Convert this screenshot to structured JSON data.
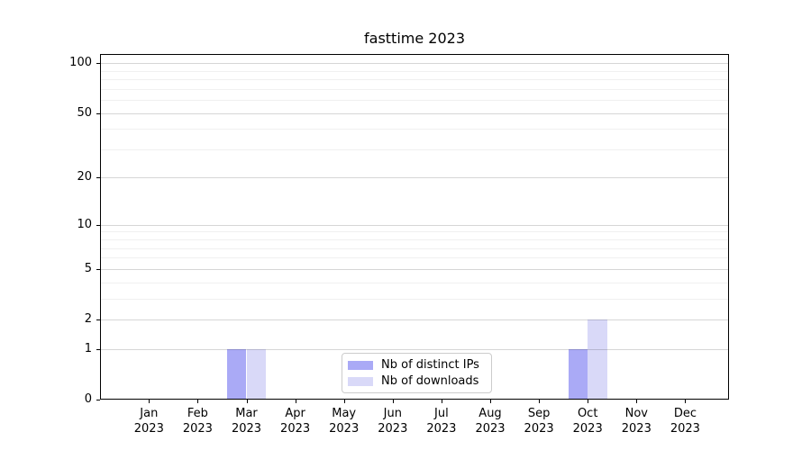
{
  "chart_data": {
    "type": "bar",
    "title": "fasttime 2023",
    "categories": [
      "Jan",
      "Feb",
      "Mar",
      "Apr",
      "May",
      "Jun",
      "Jul",
      "Aug",
      "Sep",
      "Oct",
      "Nov",
      "Dec"
    ],
    "category_year": "2023",
    "series": [
      {
        "name": "Nb of distinct IPs",
        "color": "#aaaaf6",
        "values": [
          0,
          0,
          1,
          0,
          0,
          0,
          0,
          0,
          0,
          1,
          0,
          0
        ]
      },
      {
        "name": "Nb of downloads",
        "color": "#d9d9f8",
        "values": [
          0,
          0,
          1,
          0,
          0,
          0,
          0,
          0,
          0,
          2,
          0,
          0
        ]
      }
    ],
    "yscale": "log1p",
    "ylim": [
      0,
      113.5
    ],
    "yticks_major": [
      0,
      1,
      2,
      5,
      10,
      20,
      50,
      100
    ],
    "yticks_minor": [
      3,
      4,
      6,
      7,
      8,
      9,
      30,
      40,
      60,
      70,
      80,
      90
    ],
    "grid": true,
    "legend_position": "lower center"
  }
}
